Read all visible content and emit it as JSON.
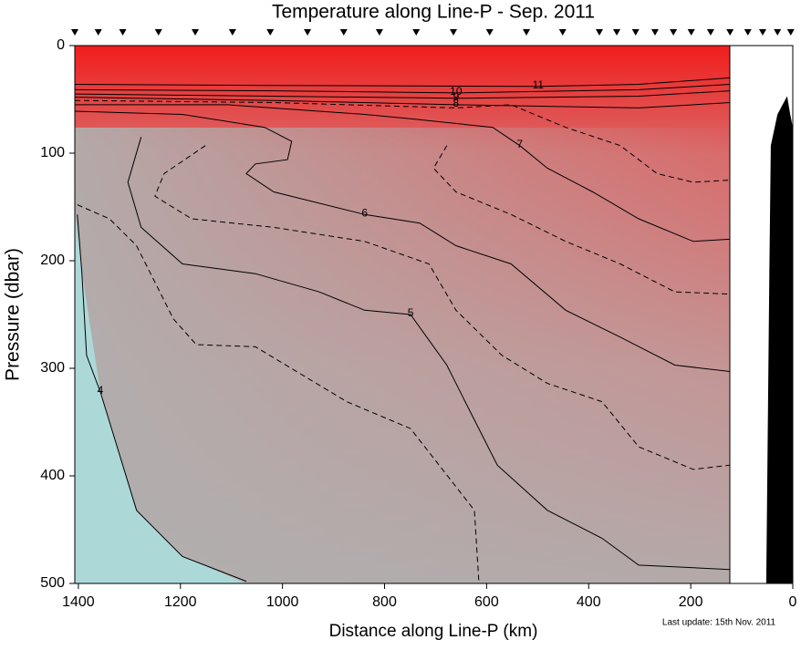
{
  "chart_data": {
    "type": "contour",
    "title": "Temperature along Line-P - Sep. 2011",
    "x_label": "Distance along Line-P (km)",
    "y_label": "Pressure (dbar)",
    "annotation": "Last update: 15th Nov. 2011",
    "xlim": [
      1407,
      0
    ],
    "ylim": [
      0,
      500
    ],
    "xticks": [
      1400,
      1200,
      1000,
      800,
      600,
      400,
      200,
      0
    ],
    "yticks": [
      0,
      100,
      200,
      300,
      400,
      500
    ],
    "stations": [
      1407,
      1361,
      1313,
      1243,
      1171,
      1098,
      1024,
      951,
      880,
      810,
      738,
      665,
      594,
      522,
      451,
      379,
      345,
      308,
      270,
      234,
      199,
      161,
      123,
      88,
      59,
      30,
      4
    ],
    "contours": [
      {
        "level": 4,
        "style": "solid",
        "x": [
          1402,
          1393,
          1384,
          1357,
          1286,
          1196,
          1071
        ],
        "y": [
          157,
          212,
          288,
          322,
          432,
          475,
          498
        ]
      },
      {
        "level": 4.5,
        "style": "dashed",
        "x": [
          1402,
          1339,
          1286,
          1214,
          1169,
          1053,
          874,
          749,
          624,
          615
        ],
        "y": [
          148,
          161,
          186,
          254,
          278,
          280,
          331,
          356,
          432,
          500
        ]
      },
      {
        "level": 5,
        "style": "solid",
        "x": [
          1277,
          1303,
          1277,
          1196,
          1053,
          928,
          839,
          749,
          678,
          642,
          579,
          481,
          374,
          302,
          123
        ],
        "y": [
          85,
          127,
          169,
          203,
          212,
          229,
          246,
          250,
          297,
          331,
          390,
          432,
          458,
          483,
          487
        ]
      },
      {
        "level": 5.5,
        "style": "dashed",
        "x": [
          1151,
          1232,
          1250,
          1178,
          1017,
          839,
          713,
          660,
          570,
          481,
          374,
          302,
          195,
          123
        ],
        "y": [
          93,
          119,
          140,
          161,
          169,
          182,
          203,
          246,
          288,
          314,
          331,
          373,
          394,
          390
        ]
      },
      {
        "level": 6,
        "style": "solid",
        "x": [
          1407,
          1196,
          1035,
          982,
          990,
          1053,
          1071,
          1017,
          839,
          731,
          660,
          552,
          445,
          338,
          231,
          123
        ],
        "y": [
          61,
          64,
          76,
          89,
          106,
          110,
          119,
          136,
          157,
          165,
          186,
          203,
          246,
          271,
          297,
          303
        ]
      },
      {
        "level": 6.5,
        "style": "dashed",
        "x": [
          678,
          704,
          660,
          552,
          445,
          338,
          231,
          123
        ],
        "y": [
          93,
          114,
          136,
          157,
          182,
          203,
          229,
          231
        ]
      },
      {
        "level": 7,
        "style": "solid",
        "x": [
          1407,
          1107,
          839,
          749,
          588,
          535,
          481,
          392,
          302,
          195,
          123
        ],
        "y": [
          55,
          55,
          64,
          68,
          76,
          93,
          114,
          136,
          161,
          182,
          180
        ]
      },
      {
        "level": 7.5,
        "style": "dashed",
        "x": [
          1407,
          1017,
          660,
          552,
          445,
          338,
          266,
          195,
          123
        ],
        "y": [
          51,
          53,
          58,
          55,
          76,
          93,
          119,
          127,
          125
        ]
      },
      {
        "level": 8,
        "style": "solid",
        "x": [
          1407,
          1017,
          660,
          302,
          123
        ],
        "y": [
          48,
          51,
          55,
          58,
          53
        ]
      },
      {
        "level": 9,
        "style": "solid",
        "x": [
          1407,
          1017,
          660,
          302,
          123
        ],
        "y": [
          45,
          47,
          49,
          47,
          42
        ]
      },
      {
        "level": 10,
        "style": "solid",
        "x": [
          1407,
          1017,
          660,
          302,
          123
        ],
        "y": [
          41,
          42,
          44,
          41,
          36
        ]
      },
      {
        "level": 11,
        "style": "solid",
        "x": [
          1407,
          1017,
          499,
          302,
          123
        ],
        "y": [
          36,
          37,
          38,
          36,
          30
        ]
      }
    ],
    "bathymetry": {
      "color": "#000000",
      "x": [
        52,
        46,
        43,
        30,
        20,
        11,
        5,
        0
      ],
      "y": [
        500,
        212,
        93,
        64,
        55,
        47,
        64,
        76
      ]
    }
  }
}
